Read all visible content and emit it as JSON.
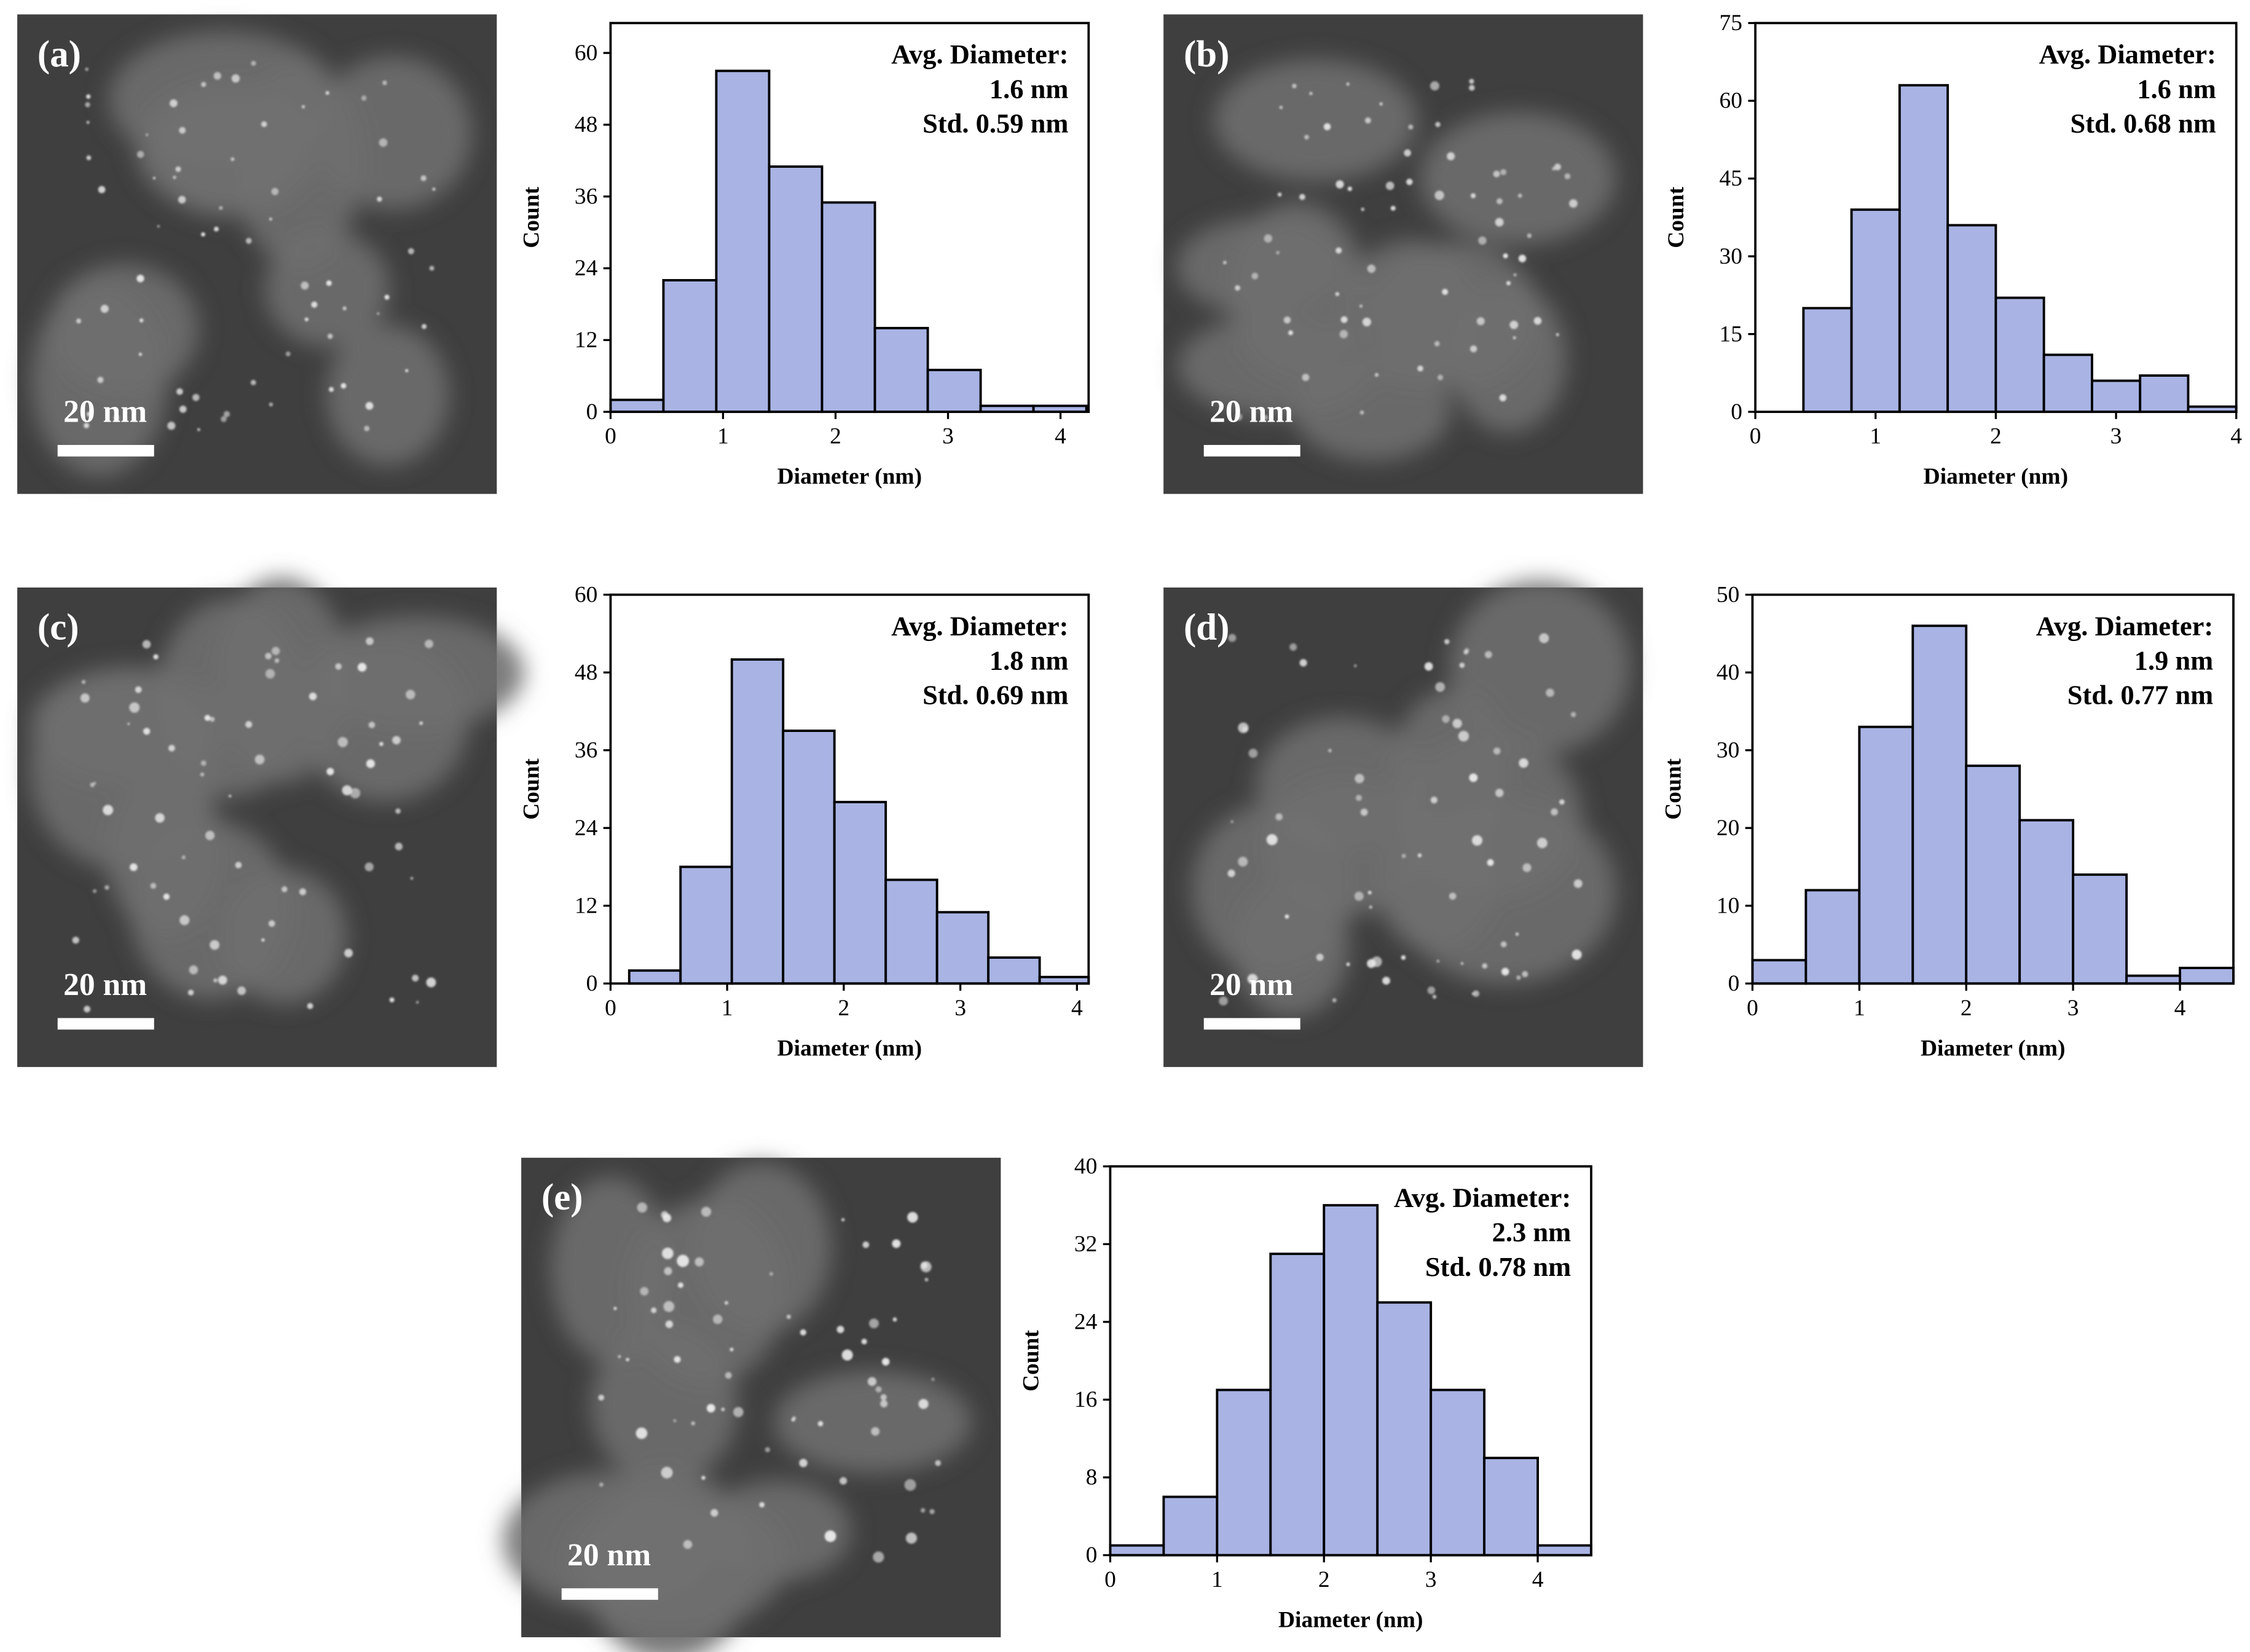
{
  "figure": {
    "colors": {
      "bar_fill": "#a9b4e4",
      "bar_stroke": "#000000",
      "tem_background": "#3f3f3f",
      "tem_particle": "#6f6f6f",
      "tem_nanoparticle": "#e8e8e8",
      "scale_text": "#ffffff"
    }
  },
  "panels": [
    {
      "label": "(a)",
      "scale_bar_text": "20 nm",
      "annotation": [
        "Avg. Diameter:",
        "1.6 nm",
        "Std. 0.59 nm"
      ]
    },
    {
      "label": "(b)",
      "scale_bar_text": "20 nm",
      "annotation": [
        "Avg. Diameter:",
        "1.6 nm",
        "Std. 0.68 nm"
      ]
    },
    {
      "label": "(c)",
      "scale_bar_text": "20 nm",
      "annotation": [
        "Avg. Diameter:",
        "1.8 nm",
        "Std. 0.69 nm"
      ]
    },
    {
      "label": "(d)",
      "scale_bar_text": "20 nm",
      "annotation": [
        "Avg. Diameter:",
        "1.9 nm",
        "Std. 0.77 nm"
      ]
    },
    {
      "label": "(e)",
      "scale_bar_text": "20 nm",
      "annotation": [
        "Avg. Diameter:",
        "2.3 nm",
        "Std. 0.78 nm"
      ]
    }
  ],
  "chart_data": [
    {
      "type": "bar",
      "panel": "(a)",
      "title": "",
      "xlabel": "Diameter (nm)",
      "ylabel": "Count",
      "xlim": [
        0,
        4.25
      ],
      "ylim": [
        0,
        65
      ],
      "xticks": [
        0,
        1,
        2,
        3,
        4
      ],
      "yticks": [
        0,
        12,
        24,
        36,
        48,
        60
      ],
      "bin_edges": [
        0,
        0.47,
        0.94,
        1.41,
        1.88,
        2.35,
        2.82,
        3.29,
        3.76,
        4.23
      ],
      "values": [
        2,
        22,
        57,
        41,
        35,
        14,
        7,
        1,
        1
      ]
    },
    {
      "type": "bar",
      "panel": "(b)",
      "title": "",
      "xlabel": "Diameter (nm)",
      "ylabel": "Count",
      "xlim": [
        0,
        4
      ],
      "ylim": [
        0,
        75
      ],
      "xticks": [
        0,
        1,
        2,
        3,
        4
      ],
      "yticks": [
        0,
        15,
        30,
        45,
        60,
        75
      ],
      "bin_edges": [
        0.4,
        0.8,
        1.2,
        1.6,
        2.0,
        2.4,
        2.8,
        3.2,
        3.6,
        4.0
      ],
      "values": [
        20,
        39,
        63,
        36,
        22,
        11,
        6,
        7,
        1
      ]
    },
    {
      "type": "bar",
      "panel": "(c)",
      "title": "",
      "xlabel": "Diameter (nm)",
      "ylabel": "Count",
      "xlim": [
        0,
        4.1
      ],
      "ylim": [
        0,
        60
      ],
      "xticks": [
        0,
        1,
        2,
        3,
        4
      ],
      "yticks": [
        0,
        12,
        24,
        36,
        48,
        60
      ],
      "bin_edges": [
        0.16,
        0.6,
        1.04,
        1.48,
        1.92,
        2.36,
        2.8,
        3.24,
        3.68,
        4.1
      ],
      "values": [
        2,
        18,
        50,
        39,
        28,
        16,
        11,
        4,
        1
      ]
    },
    {
      "type": "bar",
      "panel": "(d)",
      "title": "",
      "xlabel": "Diameter (nm)",
      "ylabel": "Count",
      "xlim": [
        0,
        4.5
      ],
      "ylim": [
        0,
        50
      ],
      "xticks": [
        0,
        1,
        2,
        3,
        4
      ],
      "yticks": [
        0,
        10,
        20,
        30,
        40,
        50
      ],
      "bin_edges": [
        0,
        0.5,
        1.0,
        1.5,
        2.0,
        2.5,
        3.0,
        3.5,
        4.0,
        4.5
      ],
      "values": [
        3,
        12,
        33,
        46,
        28,
        21,
        14,
        1,
        2
      ]
    },
    {
      "type": "bar",
      "panel": "(e)",
      "title": "",
      "xlabel": "Diameter (nm)",
      "ylabel": "Count",
      "xlim": [
        0,
        4.5
      ],
      "ylim": [
        0,
        40
      ],
      "xticks": [
        0,
        1,
        2,
        3,
        4
      ],
      "yticks": [
        0,
        8,
        16,
        24,
        32,
        40
      ],
      "bin_edges": [
        0,
        0.5,
        1.0,
        1.5,
        2.0,
        2.5,
        3.0,
        3.5,
        4.0,
        4.5
      ],
      "values": [
        1,
        6,
        17,
        31,
        36,
        26,
        17,
        10,
        1
      ]
    }
  ]
}
